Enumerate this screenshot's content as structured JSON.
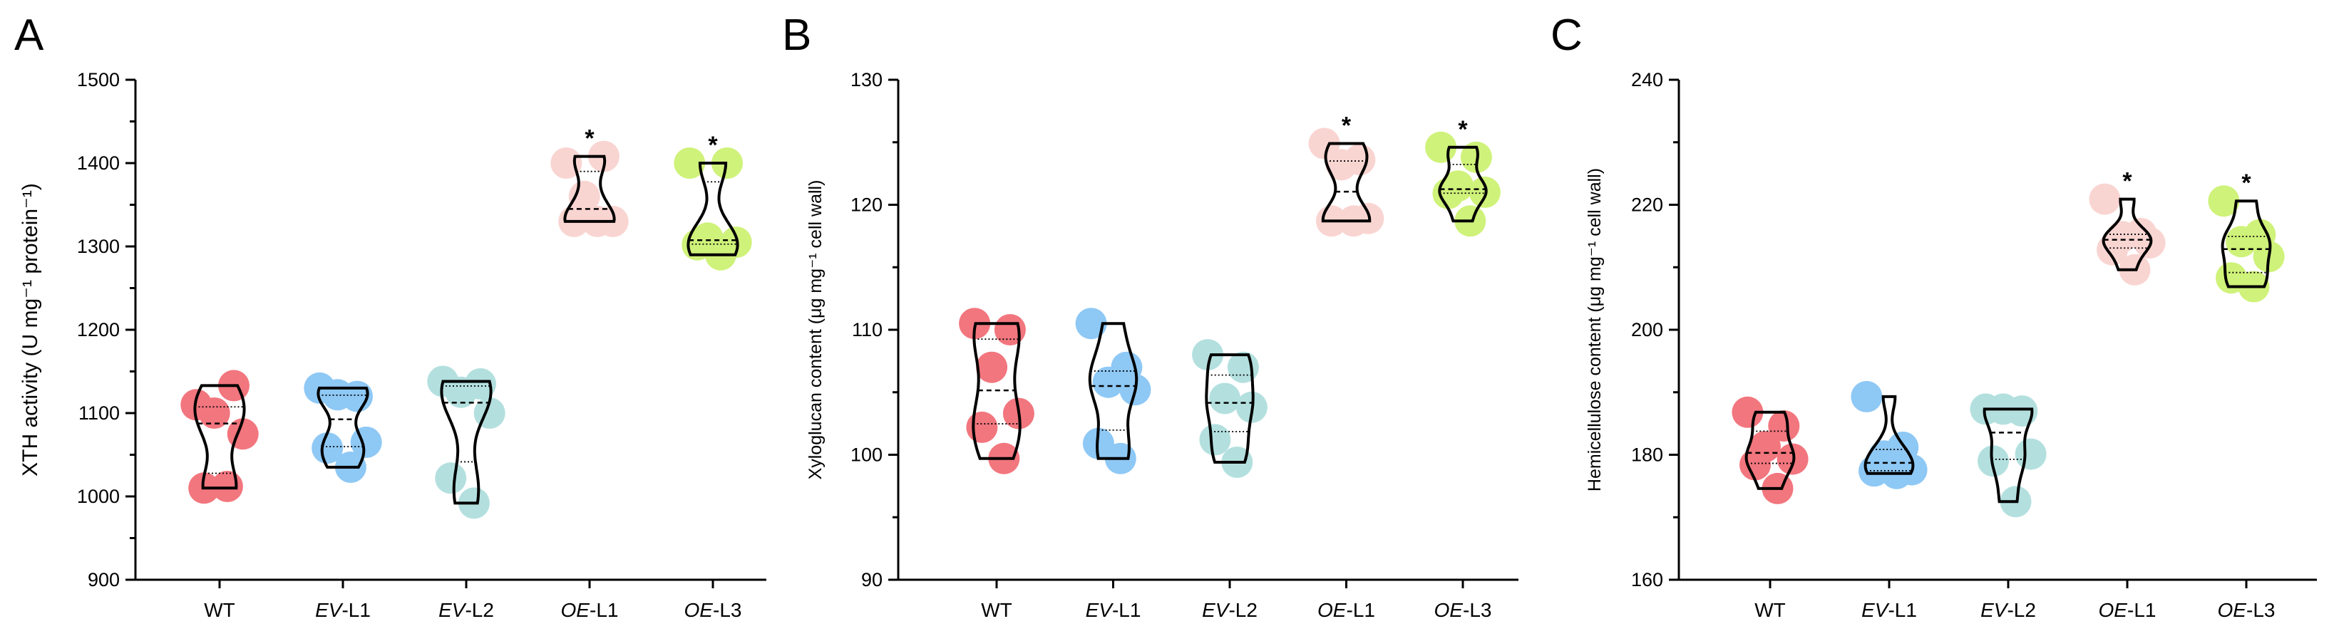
{
  "colors": {
    "WT": "#f2767e",
    "EV-L1": "#8ec8f5",
    "EV-L2": "#b3e0df",
    "OE-L1": "#f9d5d2",
    "OE-L3": "#cff27a"
  },
  "chart_data": [
    {
      "type": "violin",
      "panel_letter": "A",
      "ylabel": "XTH activity (U mg⁻¹ protein⁻¹)",
      "ylim": [
        900,
        1500
      ],
      "yticks": [
        900,
        1000,
        1100,
        1200,
        1300,
        1400,
        1500
      ],
      "categories": [
        {
          "prefix": "",
          "suffix": "WT",
          "key": "WT"
        },
        {
          "prefix": "EV",
          "suffix": "-L1",
          "key": "EV-L1"
        },
        {
          "prefix": "EV",
          "suffix": "-L2",
          "key": "EV-L2"
        },
        {
          "prefix": "OE",
          "suffix": "-L1",
          "key": "OE-L1"
        },
        {
          "prefix": "OE",
          "suffix": "-L3",
          "key": "OE-L3"
        }
      ],
      "series": [
        {
          "key": "WT",
          "values": [
            1110,
            1133,
            1100,
            1075,
            1010,
            1012
          ],
          "significance": ""
        },
        {
          "key": "EV-L1",
          "values": [
            1130,
            1120,
            1122,
            1065,
            1058,
            1035
          ],
          "significance": ""
        },
        {
          "key": "EV-L2",
          "values": [
            1138,
            1135,
            1125,
            1100,
            1022,
            992
          ],
          "significance": ""
        },
        {
          "key": "OE-L1",
          "values": [
            1400,
            1408,
            1360,
            1330,
            1330,
            1330
          ],
          "significance": "*"
        },
        {
          "key": "OE-L3",
          "values": [
            1400,
            1400,
            1310,
            1305,
            1302,
            1290
          ],
          "significance": "*"
        }
      ]
    },
    {
      "type": "violin",
      "panel_letter": "B",
      "ylabel": "Xyloglucan content (μg mg⁻¹ cell wall)",
      "ylim": [
        90,
        130
      ],
      "yticks": [
        90,
        100,
        110,
        120,
        130
      ],
      "categories": [
        {
          "prefix": "",
          "suffix": "WT",
          "key": "WT"
        },
        {
          "prefix": "EV",
          "suffix": "-L1",
          "key": "EV-L1"
        },
        {
          "prefix": "EV",
          "suffix": "-L2",
          "key": "EV-L2"
        },
        {
          "prefix": "OE",
          "suffix": "-L1",
          "key": "OE-L1"
        },
        {
          "prefix": "OE",
          "suffix": "-L3",
          "key": "OE-L3"
        }
      ],
      "series": [
        {
          "key": "WT",
          "values": [
            110.5,
            110.0,
            107.0,
            103.3,
            102.2,
            99.7
          ],
          "significance": ""
        },
        {
          "key": "EV-L1",
          "values": [
            110.5,
            107.0,
            105.8,
            105.2,
            100.9,
            99.7
          ],
          "significance": ""
        },
        {
          "key": "EV-L2",
          "values": [
            108.0,
            107.0,
            104.5,
            103.8,
            101.2,
            99.4
          ],
          "significance": ""
        },
        {
          "key": "OE-L1",
          "values": [
            124.9,
            123.6,
            123.2,
            118.9,
            118.7,
            118.7
          ],
          "significance": "*"
        },
        {
          "key": "OE-L3",
          "values": [
            124.6,
            123.8,
            121.5,
            121.0,
            120.9,
            118.7
          ],
          "significance": "*"
        }
      ]
    },
    {
      "type": "violin",
      "panel_letter": "C",
      "ylabel": "Hemicellulose content (μg mg⁻¹ cell wall)",
      "ylim": [
        160,
        240
      ],
      "yticks": [
        160,
        180,
        200,
        220,
        240
      ],
      "categories": [
        {
          "prefix": "",
          "suffix": "WT",
          "key": "WT"
        },
        {
          "prefix": "EV",
          "suffix": "-L1",
          "key": "EV-L1"
        },
        {
          "prefix": "EV",
          "suffix": "-L2",
          "key": "EV-L2"
        },
        {
          "prefix": "OE",
          "suffix": "-L1",
          "key": "OE-L1"
        },
        {
          "prefix": "OE",
          "suffix": "-L3",
          "key": "OE-L3"
        }
      ],
      "series": [
        {
          "key": "WT",
          "values": [
            186.8,
            184.6,
            181.3,
            179.3,
            178.4,
            174.6
          ],
          "significance": ""
        },
        {
          "key": "EV-L1",
          "values": [
            189.3,
            181.2,
            179.8,
            177.6,
            177.4,
            177.0
          ],
          "significance": ""
        },
        {
          "key": "EV-L2",
          "values": [
            187.3,
            187.0,
            187.3,
            180.1,
            179.0,
            172.5
          ],
          "significance": ""
        },
        {
          "key": "OE-L1",
          "values": [
            220.9,
            215.4,
            214.9,
            213.9,
            212.8,
            209.6
          ],
          "significance": "*"
        },
        {
          "key": "OE-L3",
          "values": [
            220.6,
            215.2,
            214.1,
            211.7,
            208.3,
            206.9
          ],
          "significance": "*"
        }
      ]
    }
  ]
}
